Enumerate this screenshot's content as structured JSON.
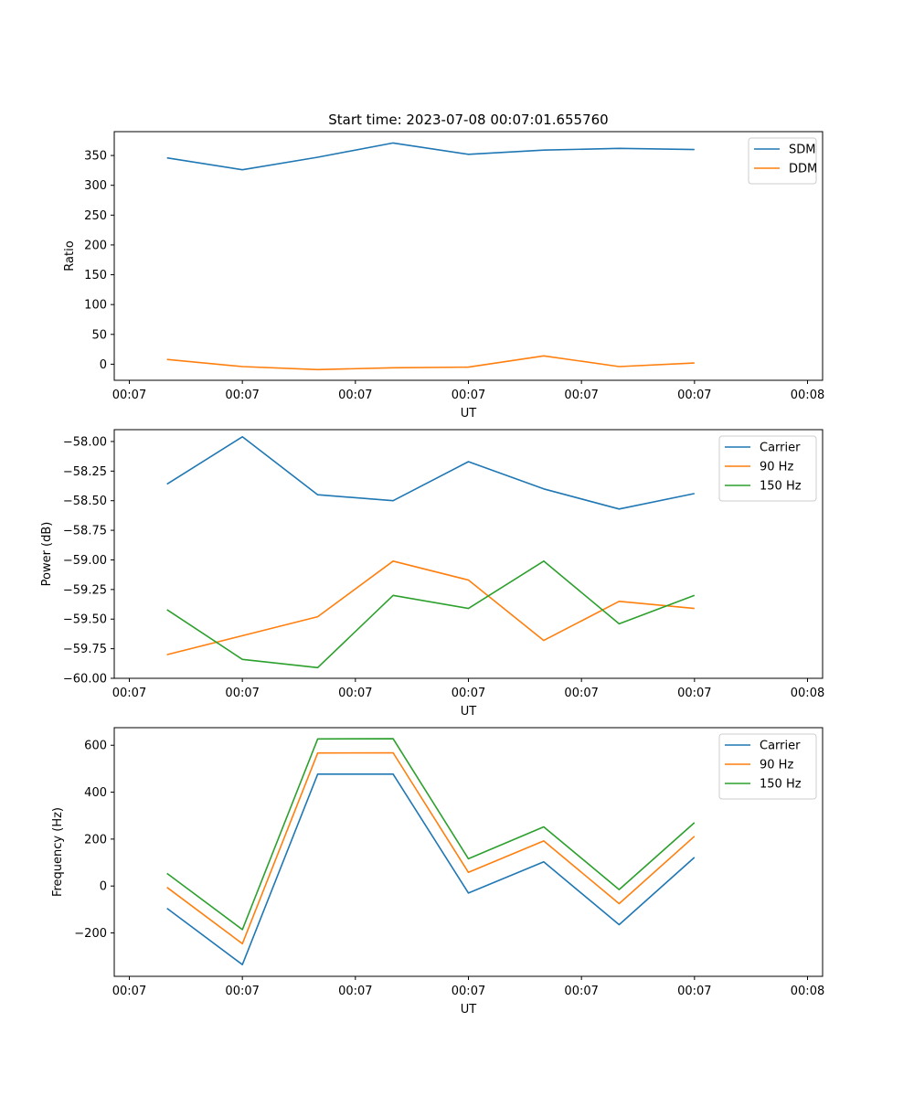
{
  "figure": {
    "title": "Start time: 2023-07-08 00:07:01.655760"
  },
  "chart_data": [
    {
      "type": "line",
      "title": "Start time: 2023-07-08 00:07:01.655760",
      "xlabel": "UT",
      "ylabel": "Ratio",
      "x": [
        0.5,
        1.5,
        2.5,
        3.5,
        4.5,
        5.5,
        6.5,
        7.5
      ],
      "xlim": [
        -0.2,
        9.2
      ],
      "xtick_values": [
        0,
        1.5,
        3,
        4.5,
        6,
        7.5,
        9
      ],
      "xtick_labels": [
        "00:07",
        "00:07",
        "00:07",
        "00:07",
        "00:07",
        "00:07",
        "00:08"
      ],
      "ylim": [
        -27,
        390
      ],
      "ytick_values": [
        0,
        50,
        100,
        150,
        200,
        250,
        300,
        350
      ],
      "ytick_labels": [
        "0",
        "50",
        "100",
        "150",
        "200",
        "250",
        "300",
        "350"
      ],
      "legend_position": "top-right",
      "series": [
        {
          "name": "SDM",
          "color": "#1f77b4",
          "values": [
            346,
            326,
            347,
            371,
            352,
            359,
            362,
            360
          ]
        },
        {
          "name": "DDM",
          "color": "#ff7f0e",
          "values": [
            8,
            -4,
            -9,
            -6,
            -5,
            14,
            -4,
            2
          ]
        }
      ]
    },
    {
      "type": "line",
      "title": "",
      "xlabel": "UT",
      "ylabel": "Power (dB)",
      "x": [
        0.5,
        1.5,
        2.5,
        3.5,
        4.5,
        5.5,
        6.5,
        7.5
      ],
      "xlim": [
        -0.2,
        9.2
      ],
      "xtick_values": [
        0,
        1.5,
        3,
        4.5,
        6,
        7.5,
        9
      ],
      "xtick_labels": [
        "00:07",
        "00:07",
        "00:07",
        "00:07",
        "00:07",
        "00:07",
        "00:08"
      ],
      "ylim": [
        -60.0,
        -57.9
      ],
      "ytick_values": [
        -60.0,
        -59.75,
        -59.5,
        -59.25,
        -59.0,
        -58.75,
        -58.5,
        -58.25,
        -58.0
      ],
      "ytick_labels": [
        "−60.00",
        "−59.75",
        "−59.50",
        "−59.25",
        "−59.00",
        "−58.75",
        "−58.50",
        "−58.25",
        "−58.00"
      ],
      "legend_position": "top-right",
      "series": [
        {
          "name": "Carrier",
          "color": "#1f77b4",
          "values": [
            -58.36,
            -57.96,
            -58.45,
            -58.5,
            -58.17,
            -58.4,
            -58.57,
            -58.44
          ]
        },
        {
          "name": "90 Hz",
          "color": "#ff7f0e",
          "values": [
            -59.8,
            -59.64,
            -59.48,
            -59.01,
            -59.17,
            -59.68,
            -59.35,
            -59.41
          ]
        },
        {
          "name": "150 Hz",
          "color": "#2ca02c",
          "values": [
            -59.42,
            -59.84,
            -59.91,
            -59.3,
            -59.41,
            -59.01,
            -59.54,
            -59.3
          ]
        }
      ]
    },
    {
      "type": "line",
      "title": "",
      "xlabel": "UT",
      "ylabel": "Frequency (Hz)",
      "x": [
        0.5,
        1.5,
        2.5,
        3.5,
        4.5,
        5.5,
        6.5,
        7.5
      ],
      "xlim": [
        -0.2,
        9.2
      ],
      "xtick_values": [
        0,
        1.5,
        3,
        4.5,
        6,
        7.5,
        9
      ],
      "xtick_labels": [
        "00:07",
        "00:07",
        "00:07",
        "00:07",
        "00:07",
        "00:07",
        "00:08"
      ],
      "ylim": [
        -385,
        675
      ],
      "ytick_values": [
        -200,
        0,
        200,
        400,
        600
      ],
      "ytick_labels": [
        "−200",
        "0",
        "200",
        "400",
        "600"
      ],
      "legend_position": "top-right",
      "series": [
        {
          "name": "Carrier",
          "color": "#1f77b4",
          "values": [
            -95,
            -335,
            477,
            477,
            -30,
            103,
            -165,
            122
          ]
        },
        {
          "name": "90 Hz",
          "color": "#ff7f0e",
          "values": [
            -6,
            -246,
            567,
            568,
            58,
            192,
            -75,
            212
          ]
        },
        {
          "name": "150 Hz",
          "color": "#2ca02c",
          "values": [
            54,
            -186,
            627,
            628,
            116,
            252,
            -15,
            270
          ]
        }
      ]
    }
  ]
}
